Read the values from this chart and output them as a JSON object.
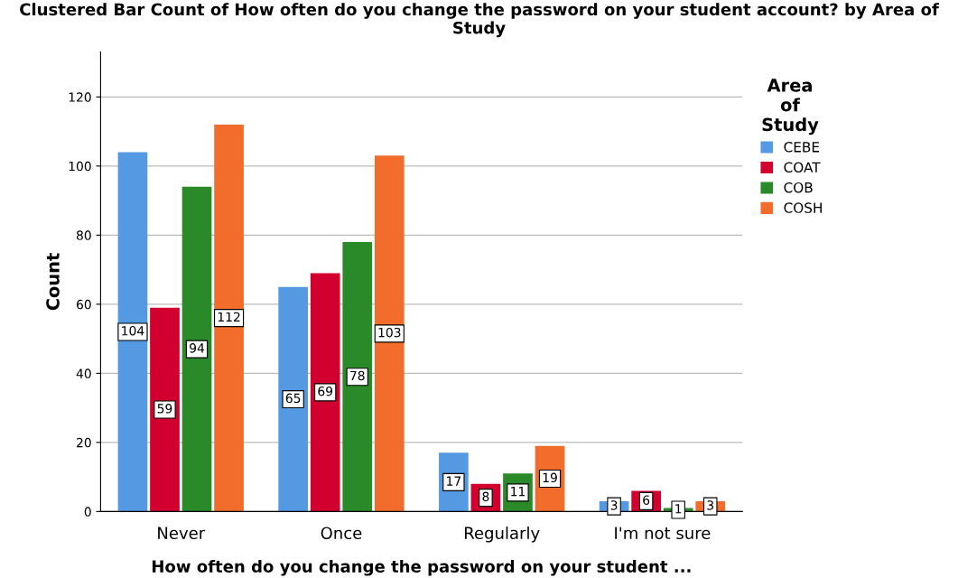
{
  "chart_data": {
    "type": "bar",
    "title": "Clustered Bar Count of How often do you change the password on your student account? by Area of Study",
    "xlabel": "How often do you change the password on your student ...",
    "ylabel": "Count",
    "legend_title": "Area\nof\nStudy",
    "categories": [
      "Never",
      "Once",
      "Regularly",
      "I'm not sure"
    ],
    "series": [
      {
        "name": "CEBE",
        "color": "#5599e2",
        "values": [
          104,
          65,
          17,
          3
        ]
      },
      {
        "name": "COAT",
        "color": "#d2002e",
        "values": [
          59,
          69,
          8,
          6
        ]
      },
      {
        "name": "COB",
        "color": "#2a8a2a",
        "values": [
          94,
          78,
          11,
          1
        ]
      },
      {
        "name": "COSH",
        "color": "#f26c2c",
        "values": [
          112,
          103,
          19,
          3
        ]
      }
    ],
    "ylim": [
      0,
      133
    ],
    "yticks": [
      0,
      20,
      40,
      60,
      80,
      100,
      120
    ],
    "grid": "y",
    "legend": "right",
    "data_labels": true
  }
}
